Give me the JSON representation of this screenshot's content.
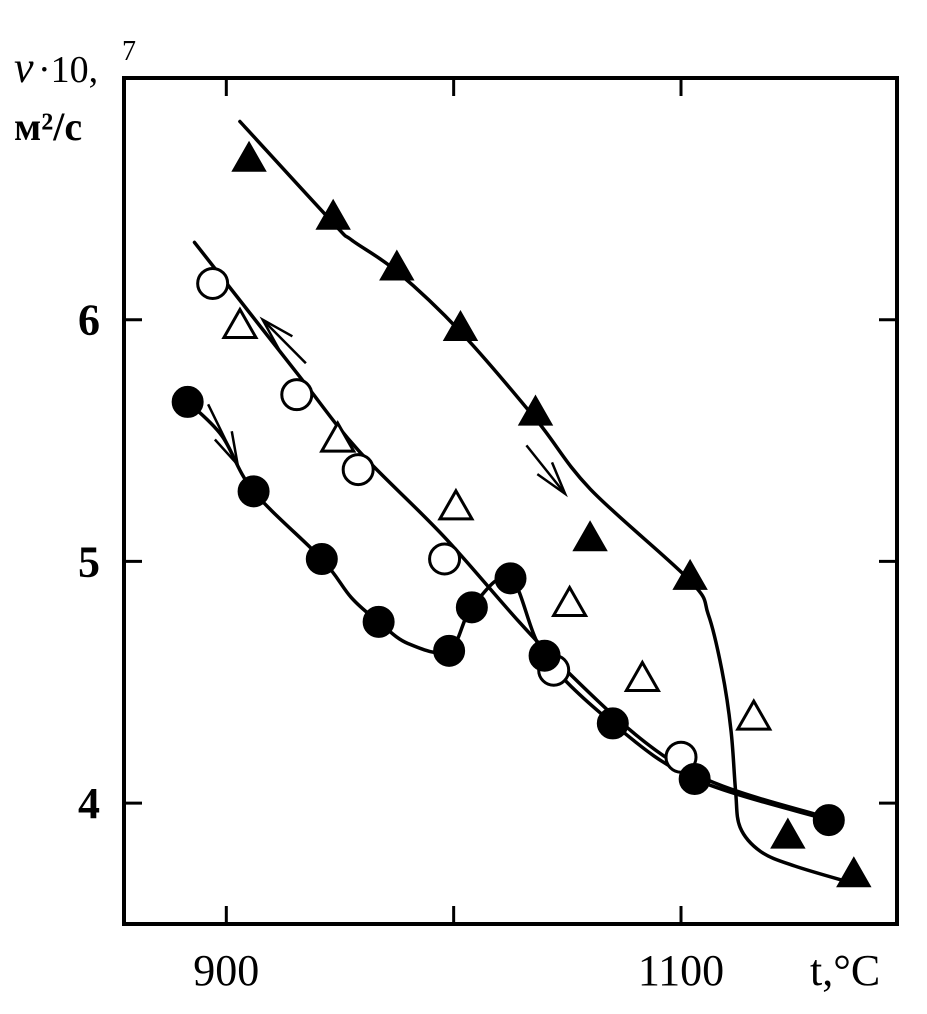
{
  "chart_data": {
    "type": "scatter",
    "title": "",
    "ylabel_symbol": "ν",
    "ylabel_multiplier": "·10,",
    "ylabel_exponent": "7",
    "ylabel_units": "м²/с",
    "xlabel": "t,°C",
    "xlim": [
      855,
      1195
    ],
    "ylim": [
      3.5,
      7.0
    ],
    "xticks": [
      900,
      1000,
      1100
    ],
    "xtick_labels": [
      "900",
      "",
      "1100"
    ],
    "yticks": [
      4,
      5,
      6
    ],
    "ytick_labels": [
      "4",
      "5",
      "6"
    ],
    "grid": false,
    "legend": "none",
    "series": [
      {
        "marker": "filled-triangle",
        "points": [
          [
            910,
            6.67
          ],
          [
            947,
            6.43
          ],
          [
            975,
            6.22
          ],
          [
            1003,
            5.97
          ],
          [
            1036,
            5.62
          ],
          [
            1060,
            5.1
          ],
          [
            1104,
            4.94
          ],
          [
            1147,
            3.87
          ],
          [
            1176,
            3.71
          ]
        ],
        "curve": [
          [
            906,
            6.82
          ],
          [
            947,
            6.4
          ],
          [
            955,
            6.33
          ],
          [
            975,
            6.2
          ],
          [
            1003,
            5.95
          ],
          [
            1036,
            5.59
          ],
          [
            1060,
            5.3
          ],
          [
            1104,
            4.92
          ],
          [
            1112,
            4.78
          ],
          [
            1118,
            4.55
          ],
          [
            1122,
            4.3
          ],
          [
            1124,
            4.05
          ],
          [
            1126,
            3.9
          ],
          [
            1135,
            3.8
          ],
          [
            1150,
            3.74
          ],
          [
            1175,
            3.67
          ]
        ],
        "arrow": {
          "from": [
            1032,
            5.48
          ],
          "tip": [
            1049,
            5.28
          ]
        }
      },
      {
        "marker": "open-circle",
        "points": [
          [
            894,
            6.15
          ],
          [
            931,
            5.69
          ],
          [
            958,
            5.38
          ],
          [
            996,
            5.01
          ],
          [
            1044,
            4.55
          ],
          [
            1100,
            4.19
          ]
        ],
        "curve": [
          [
            886,
            6.32
          ],
          [
            931,
            5.78
          ],
          [
            958,
            5.46
          ],
          [
            996,
            5.1
          ],
          [
            1044,
            4.6
          ],
          [
            1100,
            4.15
          ],
          [
            1164,
            3.94
          ]
        ],
        "arrow": {
          "from": [
            935,
            5.82
          ],
          "tip": [
            916,
            6.0
          ]
        }
      },
      {
        "marker": "open-triangle",
        "points": [
          [
            906,
            5.98
          ],
          [
            949,
            5.51
          ],
          [
            1001,
            5.23
          ],
          [
            1051,
            4.83
          ],
          [
            1083,
            4.52
          ],
          [
            1132,
            4.36
          ]
        ]
      },
      {
        "marker": "filled-circle",
        "points": [
          [
            883,
            5.66
          ],
          [
            912,
            5.29
          ],
          [
            942,
            5.01
          ],
          [
            967,
            4.75
          ],
          [
            998,
            4.63
          ],
          [
            1008,
            4.81
          ],
          [
            1025,
            4.93
          ],
          [
            1040,
            4.61
          ],
          [
            1070,
            4.33
          ],
          [
            1106,
            4.1
          ],
          [
            1165,
            3.93
          ]
        ],
        "curve": [
          [
            883,
            5.66
          ],
          [
            898,
            5.52
          ],
          [
            912,
            5.29
          ],
          [
            942,
            5.01
          ],
          [
            955,
            4.85
          ],
          [
            967,
            4.75
          ],
          [
            980,
            4.66
          ],
          [
            998,
            4.63
          ],
          [
            1008,
            4.81
          ],
          [
            1025,
            4.93
          ],
          [
            1040,
            4.61
          ],
          [
            1070,
            4.33
          ],
          [
            1106,
            4.1
          ],
          [
            1165,
            3.93
          ]
        ],
        "arrow": {
          "from": [
            892,
            5.65
          ],
          "tip": [
            905,
            5.4
          ]
        }
      }
    ]
  }
}
